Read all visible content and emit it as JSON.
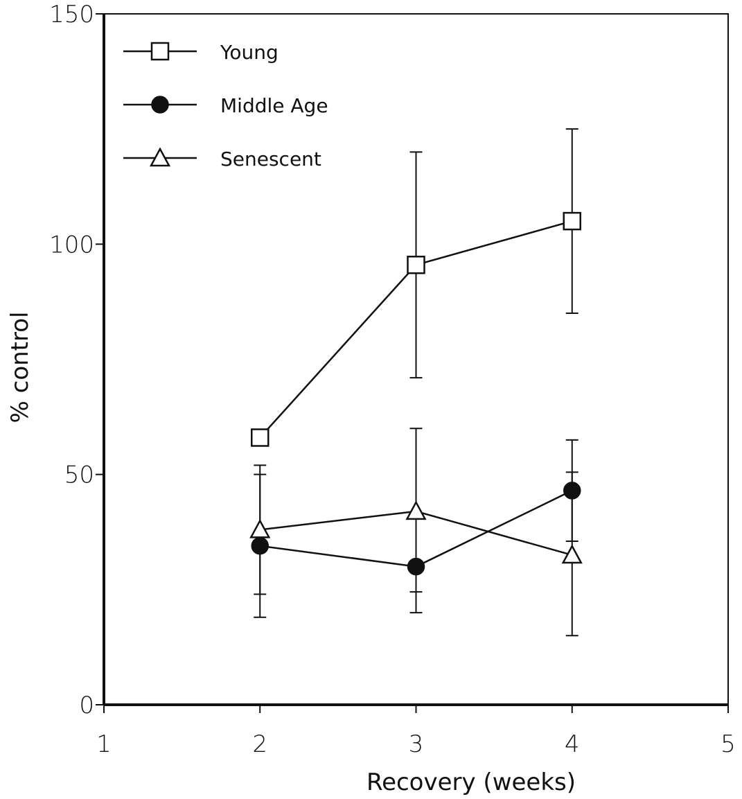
{
  "chart_data": {
    "type": "line",
    "xlabel": "Recovery (weeks)",
    "ylabel": "% control",
    "xlim": [
      1,
      5
    ],
    "ylim": [
      0,
      150
    ],
    "xticks": [
      1,
      2,
      3,
      4,
      5
    ],
    "yticks": [
      0,
      50,
      100,
      150
    ],
    "grid": false,
    "legend_position": "top-left",
    "series": [
      {
        "name": "Young",
        "marker": "open-square",
        "x": [
          2,
          3,
          4
        ],
        "y": [
          58,
          95.5,
          105
        ],
        "error_low": [
          null,
          71,
          85
        ],
        "error_high": [
          null,
          120,
          125
        ]
      },
      {
        "name": "Middle Age",
        "marker": "filled-circle",
        "x": [
          2,
          3,
          4
        ],
        "y": [
          34.5,
          30,
          46.5
        ],
        "error_low": [
          19,
          20,
          35.5
        ],
        "error_high": [
          50,
          60,
          57.5
        ]
      },
      {
        "name": "Senescent",
        "marker": "open-triangle",
        "x": [
          2,
          3,
          4
        ],
        "y": [
          38,
          42,
          32.5
        ],
        "error_low": [
          24,
          24.5,
          15
        ],
        "error_high": [
          52,
          null,
          50.5
        ]
      }
    ]
  }
}
